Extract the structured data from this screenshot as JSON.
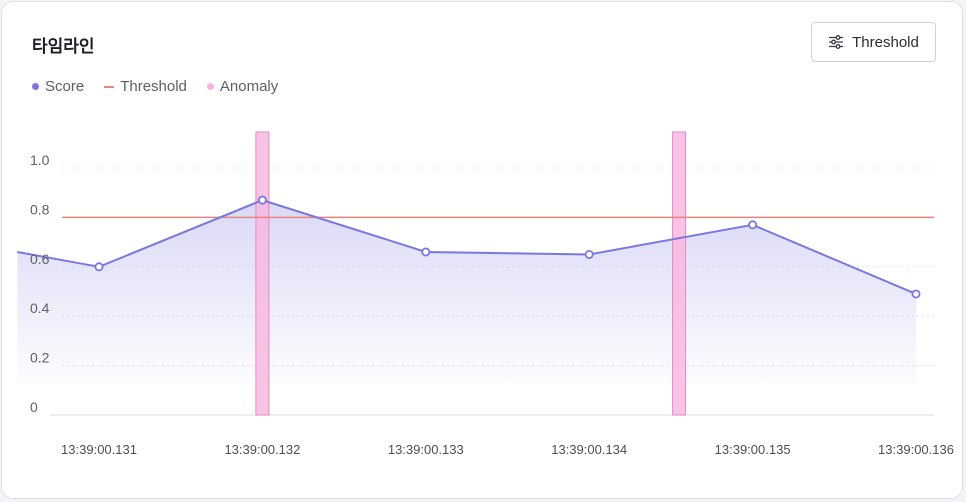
{
  "header": {
    "title": "타임라인",
    "threshold_button_label": "Threshold",
    "threshold_icon": "sliders-icon"
  },
  "legend": [
    {
      "key": "score",
      "label": "Score",
      "color": "#7b77e0",
      "marker": "dot"
    },
    {
      "key": "threshold",
      "label": "Threshold",
      "color": "#e8857f",
      "marker": "dash"
    },
    {
      "key": "anomaly",
      "label": "Anomaly",
      "color": "#f4b6dd",
      "marker": "dot"
    }
  ],
  "chart_data": {
    "type": "line",
    "x": [
      "13:39:00.1305",
      "13:39:00.131",
      "13:39:00.132",
      "13:39:00.133",
      "13:39:00.134",
      "13:39:00.135",
      "13:39:00.136"
    ],
    "x_numeric": [
      0.1305,
      0.131,
      0.132,
      0.133,
      0.134,
      0.135,
      0.136
    ],
    "series": [
      {
        "name": "Score",
        "values": [
          0.66,
          0.6,
          0.87,
          0.66,
          0.65,
          0.77,
          0.49
        ],
        "markers": [
          false,
          true,
          true,
          true,
          true,
          true,
          true
        ]
      }
    ],
    "threshold": 0.8,
    "anomalies": [
      {
        "x": 0.132,
        "label": "Anomaly"
      },
      {
        "x": 0.13455,
        "label": "Anomaly"
      }
    ],
    "x_ticks": [
      "13:39:00.131",
      "13:39:00.132",
      "13:39:00.133",
      "13:39:00.134",
      "13:39:00.135",
      "13:39:00.136"
    ],
    "x_tick_values": [
      0.131,
      0.132,
      0.133,
      0.134,
      0.135,
      0.136
    ],
    "y_ticks": [
      "0",
      "0.2",
      "0.4",
      "0.6",
      "0.8",
      "1.0"
    ],
    "y_tick_values": [
      0,
      0.2,
      0.4,
      0.6,
      0.8,
      1.0
    ],
    "ylim": [
      0,
      1.0
    ],
    "grid": true,
    "colors": {
      "line": "#7b77e0",
      "threshold": "#e8857f",
      "anomaly_fill": "#f7b8df",
      "anomaly_stroke": "#e48ac4",
      "grid": "#e3e4e8"
    }
  }
}
